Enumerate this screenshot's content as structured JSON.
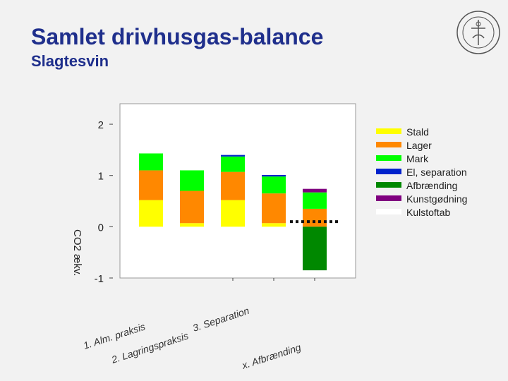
{
  "slide": {
    "title": "Samlet drivhusgas-balance",
    "subtitle": "Slagtesvin"
  },
  "colors": {
    "Stald": "#ffff00",
    "Lager": "#ff8800",
    "Mark": "#00ff00",
    "El, separation": "#0022cc",
    "Afbrænding": "#008800",
    "Kunstgødning": "#800080",
    "Kulstoftab": "#ffffff"
  },
  "chart_data": {
    "type": "bar",
    "stacked": true,
    "ylim": [
      -1,
      2.4
    ],
    "yticks": [
      2,
      1,
      0,
      -1
    ],
    "ylabel": "CO2 ækv.",
    "categories": [
      "1. Alm. praksis",
      "2. Lagringspraksis",
      "3. Separation",
      "x. Afbrænding",
      ""
    ],
    "series": [
      {
        "name": "Stald",
        "values": [
          0.52,
          0.07,
          0.52,
          0.07,
          0.0
        ]
      },
      {
        "name": "Lager",
        "values": [
          0.58,
          0.63,
          0.55,
          0.58,
          0.35
        ]
      },
      {
        "name": "Mark",
        "values": [
          0.33,
          0.4,
          0.3,
          0.33,
          0.32
        ]
      },
      {
        "name": "El, separation",
        "values": [
          0.0,
          0.0,
          0.03,
          0.03,
          0.0
        ]
      },
      {
        "name": "Afbrænding",
        "values": [
          0.0,
          0.0,
          0.0,
          0.0,
          -0.85
        ]
      },
      {
        "name": "Kunstgødning",
        "values": [
          0.0,
          0.0,
          0.0,
          0.0,
          0.07
        ]
      },
      {
        "name": "Kulstoftab",
        "values": [
          0.0,
          0.0,
          0.0,
          0.0,
          0.1
        ]
      }
    ],
    "net_marker": {
      "category_index": 4,
      "value": 0.1
    },
    "legend_position": "right",
    "grid": false
  }
}
